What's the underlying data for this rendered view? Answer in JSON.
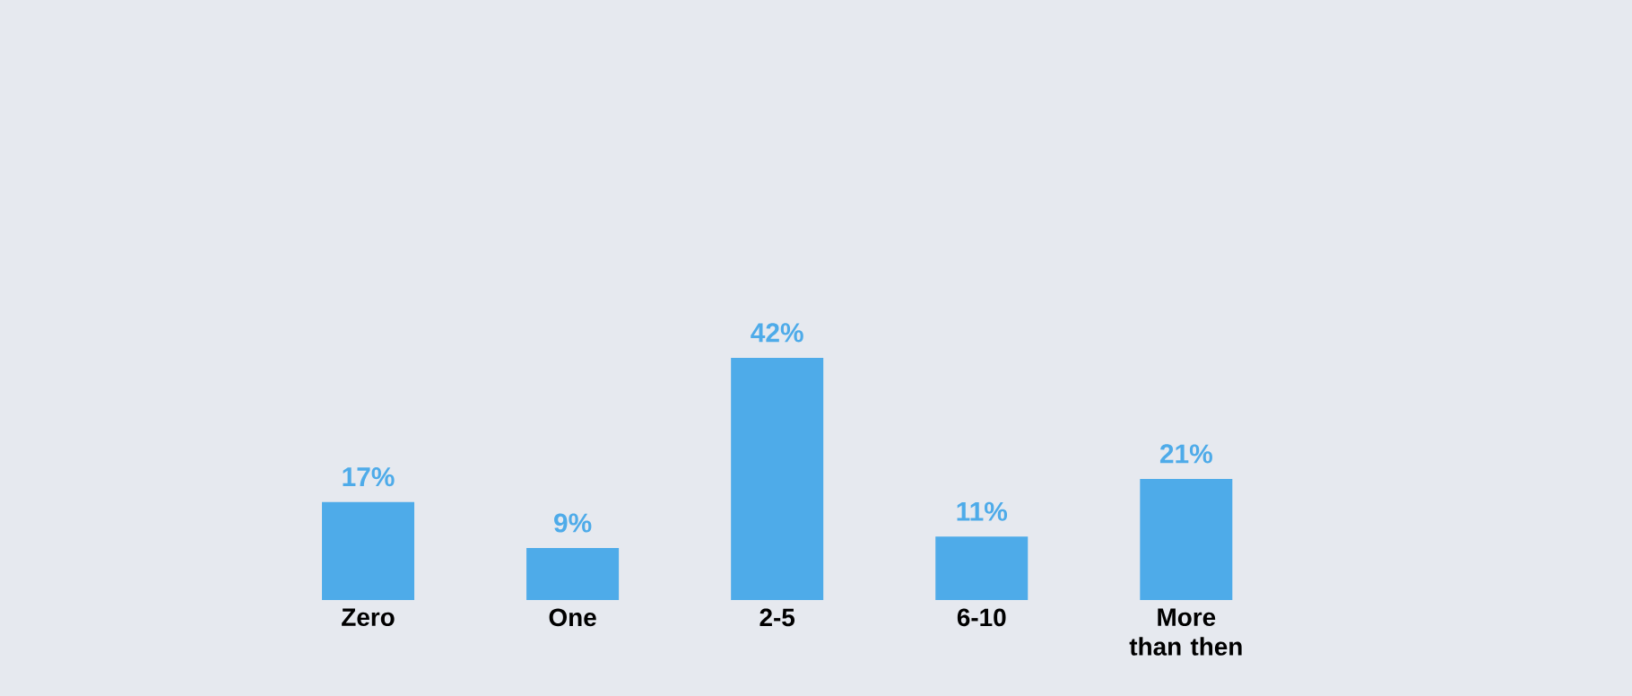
{
  "chart_data": {
    "type": "bar",
    "categories": [
      "Zero",
      "One",
      "2-5",
      "6-10",
      "More than then"
    ],
    "values": [
      17,
      9,
      42,
      11,
      21
    ],
    "value_labels": [
      "17%",
      "9%",
      "42%",
      "11%",
      "21%"
    ],
    "color": "#4eabe9"
  }
}
